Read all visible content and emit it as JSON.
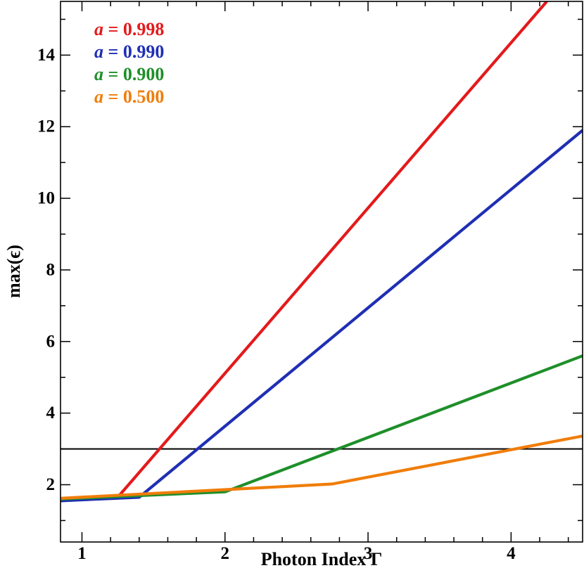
{
  "chart_data": {
    "type": "line",
    "title": "",
    "xlabel": "Photon Index Γ",
    "ylabel": "max(ϵ)",
    "xlim": [
      0.85,
      4.5
    ],
    "ylim": [
      0.4,
      15.5
    ],
    "xticks": [
      1,
      2,
      3,
      4
    ],
    "xtick_labels": [
      "1",
      "2",
      "3",
      "4"
    ],
    "yticks": [
      2,
      4,
      6,
      8,
      10,
      12,
      14
    ],
    "ytick_labels": [
      "2",
      "4",
      "6",
      "8",
      "10",
      "12",
      "14"
    ],
    "x_minor_step": 0.2,
    "y_minor_step": 1,
    "grid": false,
    "legend_position": "top-left",
    "reference_line": {
      "y": 3,
      "color": "#000000"
    },
    "series": [
      {
        "name": "a = 0.998",
        "legend_var": "a",
        "legend_eq": " = 0.998",
        "color": "#e31a1c",
        "x": [
          0.85,
          1.25,
          4.25
        ],
        "y": [
          1.55,
          1.65,
          15.5
        ]
      },
      {
        "name": "a = 0.990",
        "legend_var": "a",
        "legend_eq": " = 0.990",
        "color": "#1f2fb4",
        "x": [
          0.85,
          1.4,
          4.5
        ],
        "y": [
          1.55,
          1.65,
          11.9
        ]
      },
      {
        "name": "a = 0.900",
        "legend_var": "a",
        "legend_eq": " = 0.900",
        "color": "#1f8f2a",
        "x": [
          0.85,
          2.0,
          4.5
        ],
        "y": [
          1.6,
          1.8,
          5.6
        ]
      },
      {
        "name": "a = 0.500",
        "legend_var": "a",
        "legend_eq": " = 0.500",
        "color": "#f07d0a",
        "x": [
          0.85,
          2.75,
          4.5
        ],
        "y": [
          1.62,
          2.02,
          3.36
        ]
      }
    ]
  }
}
